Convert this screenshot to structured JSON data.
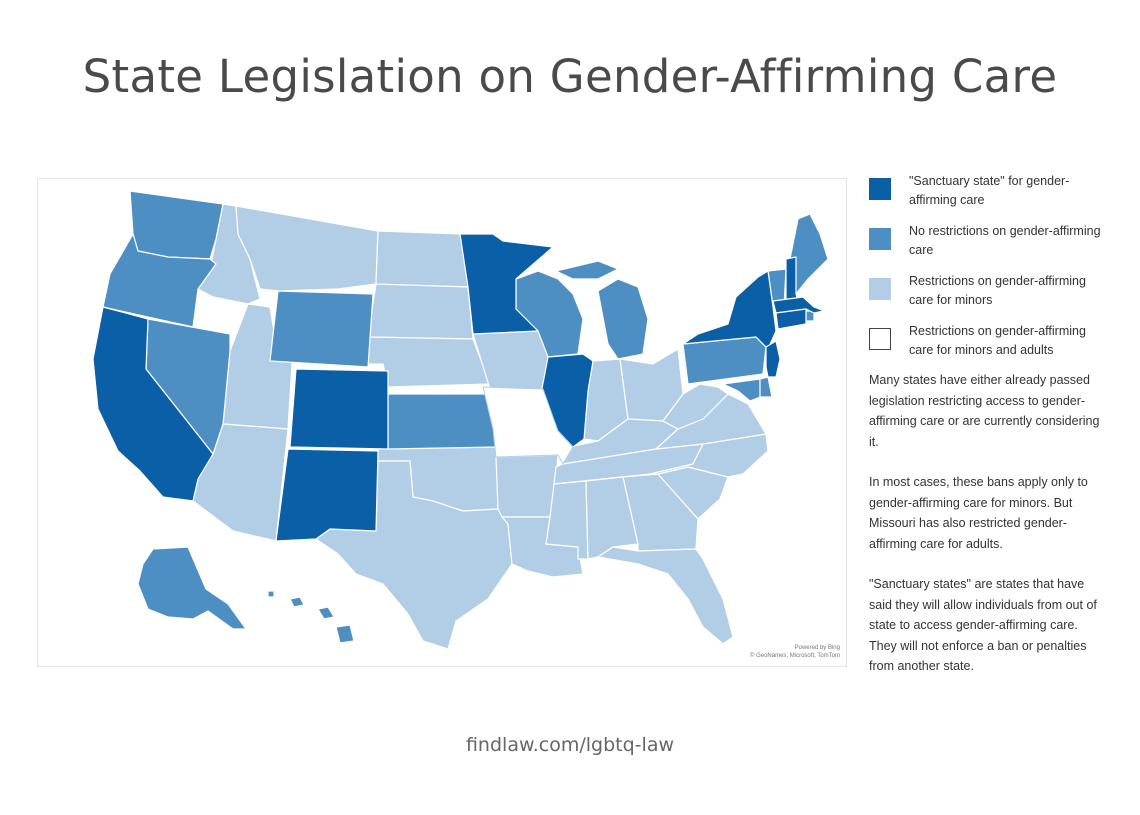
{
  "title": "State Legislation on Gender-Affirming Care",
  "footer": "findlaw.com/lgbtq-law",
  "map_credit": {
    "line1": "Powered by Bing",
    "line2": "© GeoNames, Microsoft, TomTom"
  },
  "colors": {
    "sanctuary": "#0a5fa6",
    "no_restrictions": "#4d8fc3",
    "restrict_minors": "#b2cde6",
    "restrict_all": "#ffffff"
  },
  "legend": [
    {
      "label": "\"Sanctuary state\" for gender-affirming care",
      "color": "#0a5fa6"
    },
    {
      "label": "No restrictions on gender-affirming care",
      "color": "#4d8fc3"
    },
    {
      "label": "Restrictions on gender-affirming care for minors",
      "color": "#b2cde6"
    },
    {
      "label": "Restrictions on gender-affirming care for minors and adults",
      "color": "#ffffff"
    }
  ],
  "notes": [
    "Many states have either already passed legislation restricting access to gender-affirming care or are currently considering it.",
    "In most cases, these bans apply only to gender-affirming care for minors. But Missouri has also restricted gender-affirming care for adults.",
    "\"Sanctuary states\" are states that have said they will allow individuals from out of state to access gender-affirming care. They will not enforce a ban or penalties from another state."
  ],
  "states": {
    "sanctuary": [
      "California",
      "Colorado",
      "New Mexico",
      "Minnesota",
      "Illinois",
      "New York",
      "New Jersey",
      "New Hampshire",
      "Massachusetts",
      "Connecticut",
      "Washington D.C."
    ],
    "no_restrictions": [
      "Washington",
      "Oregon",
      "Nevada",
      "Wyoming",
      "Kansas",
      "Wisconsin",
      "Michigan",
      "Pennsylvania",
      "Maine",
      "Vermont",
      "Maryland",
      "Delaware",
      "Rhode Island",
      "Alaska",
      "Hawaii"
    ],
    "restrict_minors": [
      "Idaho",
      "Montana",
      "Utah",
      "Arizona",
      "North Dakota",
      "South Dakota",
      "Nebraska",
      "Oklahoma",
      "Texas",
      "Iowa",
      "Arkansas",
      "Louisiana",
      "Indiana",
      "Ohio",
      "Kentucky",
      "Tennessee",
      "Mississippi",
      "Alabama",
      "Georgia",
      "Florida",
      "South Carolina",
      "North Carolina",
      "Virginia",
      "West Virginia"
    ],
    "restrict_all": [
      "Missouri"
    ]
  }
}
